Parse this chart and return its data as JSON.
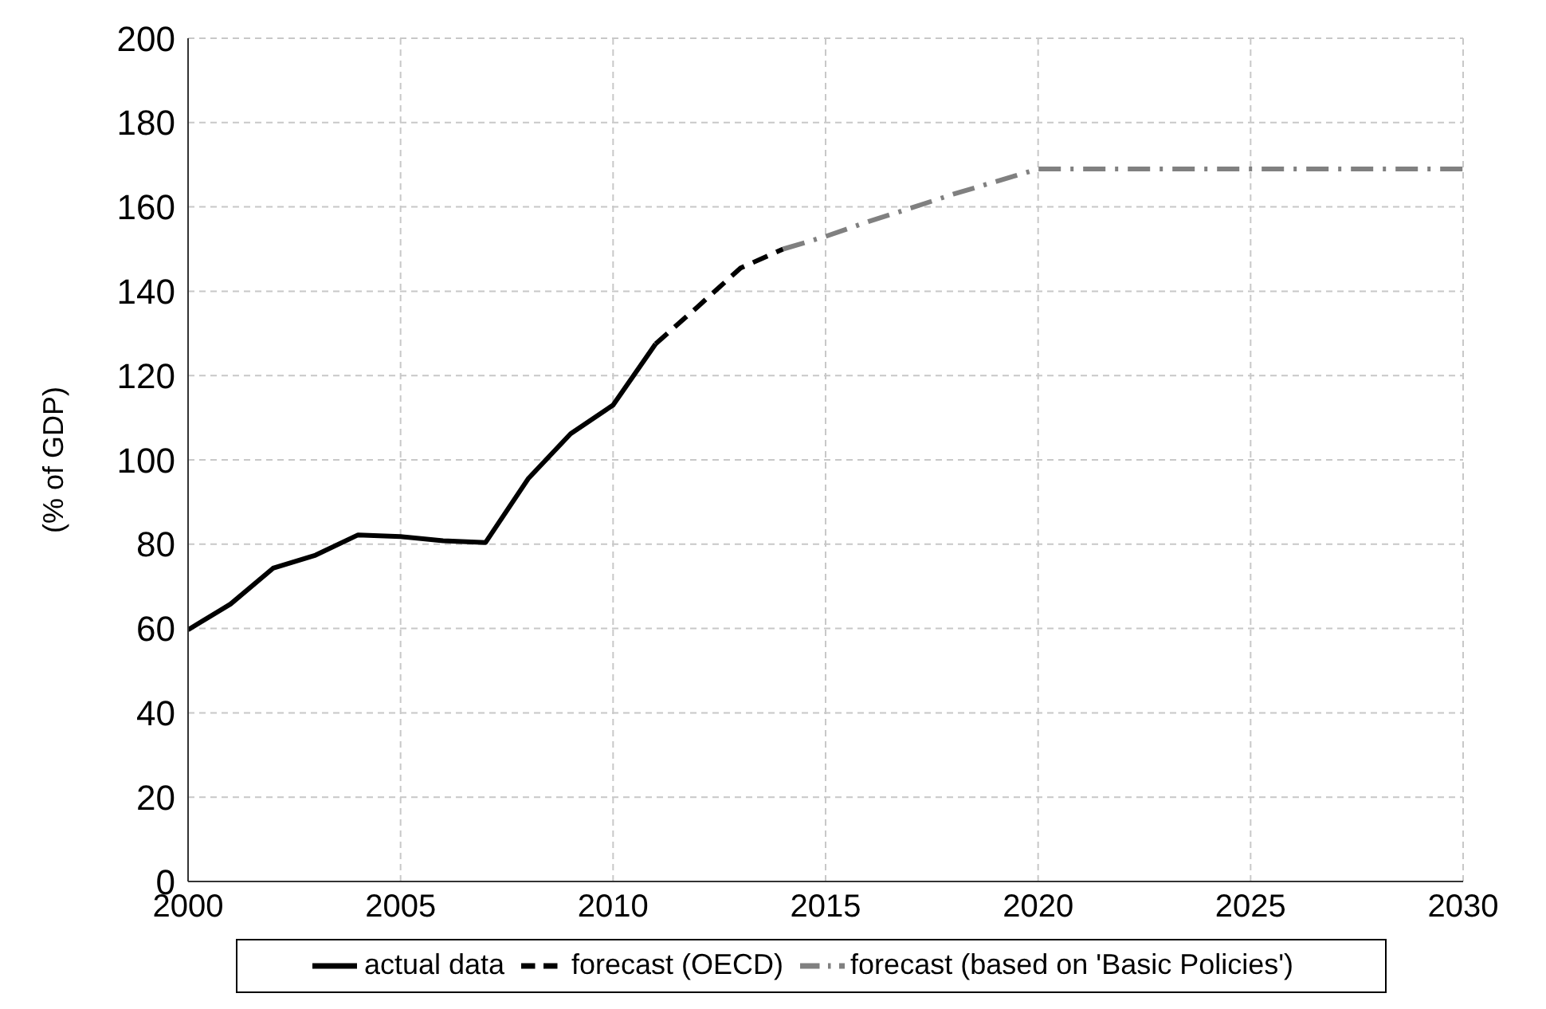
{
  "chart_data": {
    "type": "line",
    "ylabel": "(% of GDP)",
    "xlim": [
      2000,
      2030
    ],
    "xticks": [
      2000,
      2005,
      2010,
      2015,
      2020,
      2025,
      2030
    ],
    "ylim": [
      0,
      200
    ],
    "yticks": [
      0,
      20,
      40,
      60,
      80,
      100,
      120,
      140,
      160,
      180,
      200
    ],
    "grid": true,
    "legend": "bottom",
    "marker": "none",
    "series": [
      {
        "name": "actual data",
        "color": "#000000",
        "line_style": "solid",
        "x": [
          2000,
          2001,
          2002,
          2003,
          2004,
          2005,
          2006,
          2007,
          2008,
          2009,
          2010,
          2011
        ],
        "values": [
          59.7,
          65.8,
          74.3,
          77.4,
          82.2,
          81.8,
          80.8,
          80.4,
          95.5,
          106.2,
          113,
          127.5
        ]
      },
      {
        "name": "forecast (OECD)",
        "color": "#000000",
        "line_style": "dashed",
        "x": [
          2011,
          2012,
          2013,
          2014
        ],
        "values": [
          127.5,
          136.4,
          145.5,
          150
        ]
      },
      {
        "name": "forecast (based on 'Basic Policies')",
        "color": "#808080",
        "line_style": "dashdot",
        "x": [
          2014,
          2015,
          2016,
          2017,
          2018,
          2019,
          2020,
          2030
        ],
        "values": [
          150,
          153,
          156.5,
          159.7,
          163,
          166,
          169,
          169
        ]
      }
    ]
  }
}
